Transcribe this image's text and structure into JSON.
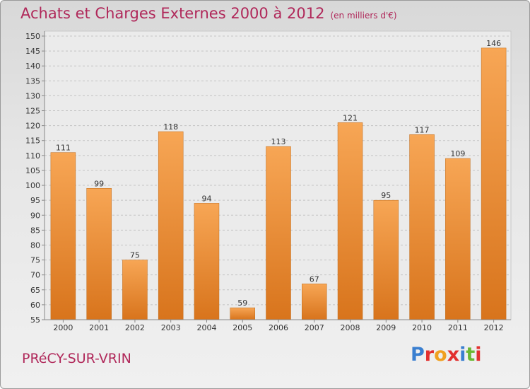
{
  "header": {
    "title": "Achats et Charges Externes 2000 à 2012",
    "subtitle": "(en milliers d'€)"
  },
  "footer": {
    "town": "PRéCY-SUR-VRIN",
    "logo": [
      "P",
      "r",
      "o",
      "x",
      "i",
      "t",
      "i"
    ],
    "logo_colors": [
      "#3a7fd0",
      "#e2302f",
      "#f0a020",
      "#e2302f",
      "#3a7fd0",
      "#6ab832",
      "#e2302f"
    ]
  },
  "chart_data": {
    "type": "bar",
    "categories": [
      "2000",
      "2001",
      "2002",
      "2003",
      "2004",
      "2005",
      "2006",
      "2007",
      "2008",
      "2009",
      "2010",
      "2011",
      "2012"
    ],
    "values": [
      111,
      99,
      75,
      118,
      94,
      59,
      113,
      67,
      121,
      95,
      117,
      109,
      146
    ],
    "title": "Achats et Charges Externes 2000 à 2012",
    "subtitle": "(en milliers d'€)",
    "xlabel": "",
    "ylabel": "",
    "ylim": [
      55,
      150
    ],
    "yticks": [
      55,
      60,
      65,
      70,
      75,
      80,
      85,
      90,
      95,
      100,
      105,
      110,
      115,
      120,
      125,
      130,
      135,
      140,
      145,
      150
    ],
    "grid": true,
    "bar_color": "#f0922e"
  }
}
